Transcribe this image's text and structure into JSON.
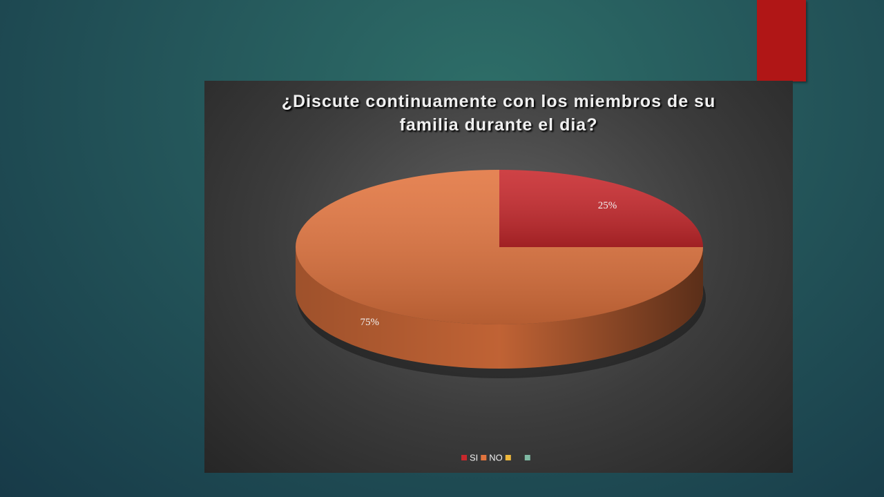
{
  "chart_data": {
    "type": "pie3d",
    "title": "¿Discute continuamente con los miembros de su familia durante el dia?",
    "categories": [
      "SI",
      "NO",
      null,
      null
    ],
    "values": [
      25,
      75,
      0,
      0
    ],
    "value_labels": [
      "25%",
      "75%",
      null,
      null
    ],
    "colors": [
      "#c8282c",
      "#e2743e",
      "#eeb83c",
      "#7fbaa4"
    ],
    "legend": "bottom"
  }
}
